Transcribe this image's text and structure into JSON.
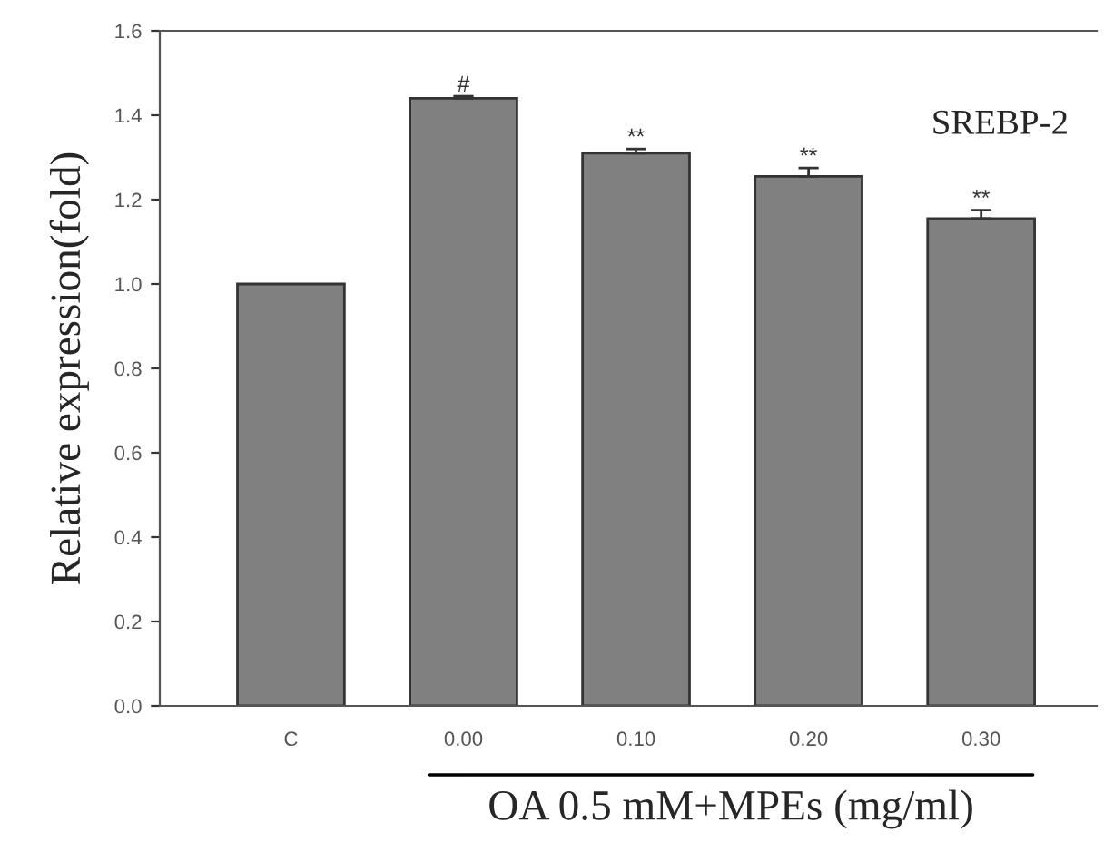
{
  "chart_data": {
    "type": "bar",
    "categories": [
      "C",
      "0.00",
      "0.10",
      "0.20",
      "0.30"
    ],
    "values": [
      1.0,
      1.44,
      1.31,
      1.255,
      1.155
    ],
    "errors": [
      null,
      0.005,
      0.01,
      0.02,
      0.02
    ],
    "color": "#808080",
    "ylabel": "Relative expression(fold)",
    "xlabel": "OA 0.5 mM+MPEs (mg/ml)",
    "ylim": [
      0,
      1.6
    ],
    "yticks": [
      {
        "value": 0,
        "label": "0.0"
      },
      0.2,
      0.4,
      0.6,
      0.8,
      {
        "value": 1,
        "label": "1.0"
      },
      1.2,
      1.4,
      1.6
    ],
    "grid": false,
    "annotations": [
      {
        "text": "#",
        "x": "0.00",
        "y": 1.445
      },
      {
        "text": "**",
        "x": "0.10",
        "y": 1.32
      },
      {
        "text": "**",
        "x": "0.20",
        "y": 1.275
      },
      {
        "text": "**",
        "x": "0.30",
        "y": 1.175
      },
      "SREBP-2"
    ]
  }
}
